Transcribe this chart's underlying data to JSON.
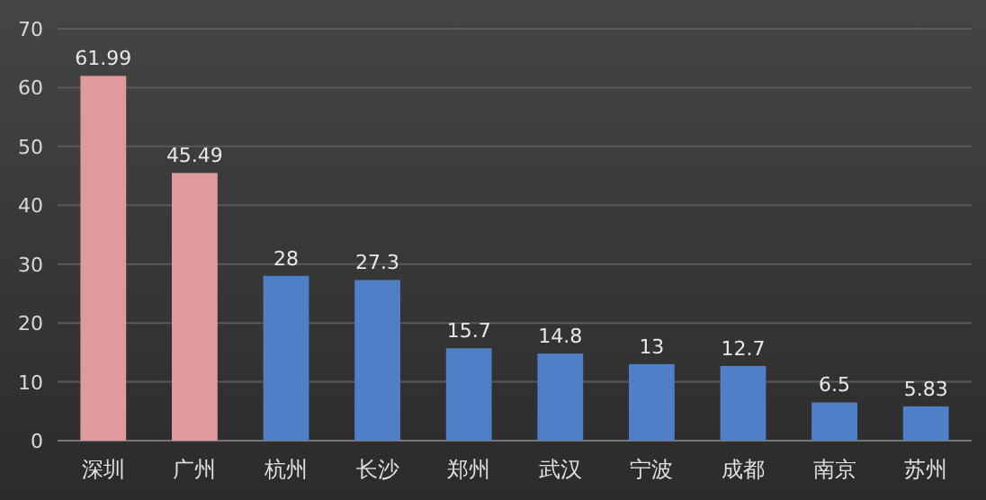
{
  "chart_data": {
    "type": "bar",
    "categories": [
      "深圳",
      "广州",
      "杭州",
      "长沙",
      "郑州",
      "武汉",
      "宁波",
      "成都",
      "南京",
      "苏州"
    ],
    "values": [
      61.99,
      45.49,
      28,
      27.3,
      15.7,
      14.8,
      13,
      12.7,
      6.5,
      5.83
    ],
    "colors": [
      "#e09a9c",
      "#e09a9c",
      "#4f7fc6",
      "#4f7fc6",
      "#4f7fc6",
      "#4f7fc6",
      "#4f7fc6",
      "#4f7fc6",
      "#4f7fc6",
      "#4f7fc6"
    ],
    "ylim": [
      0,
      70
    ],
    "yticks": [
      0,
      10,
      20,
      30,
      40,
      50,
      60,
      70
    ],
    "grid": "y",
    "data_labels": true
  }
}
